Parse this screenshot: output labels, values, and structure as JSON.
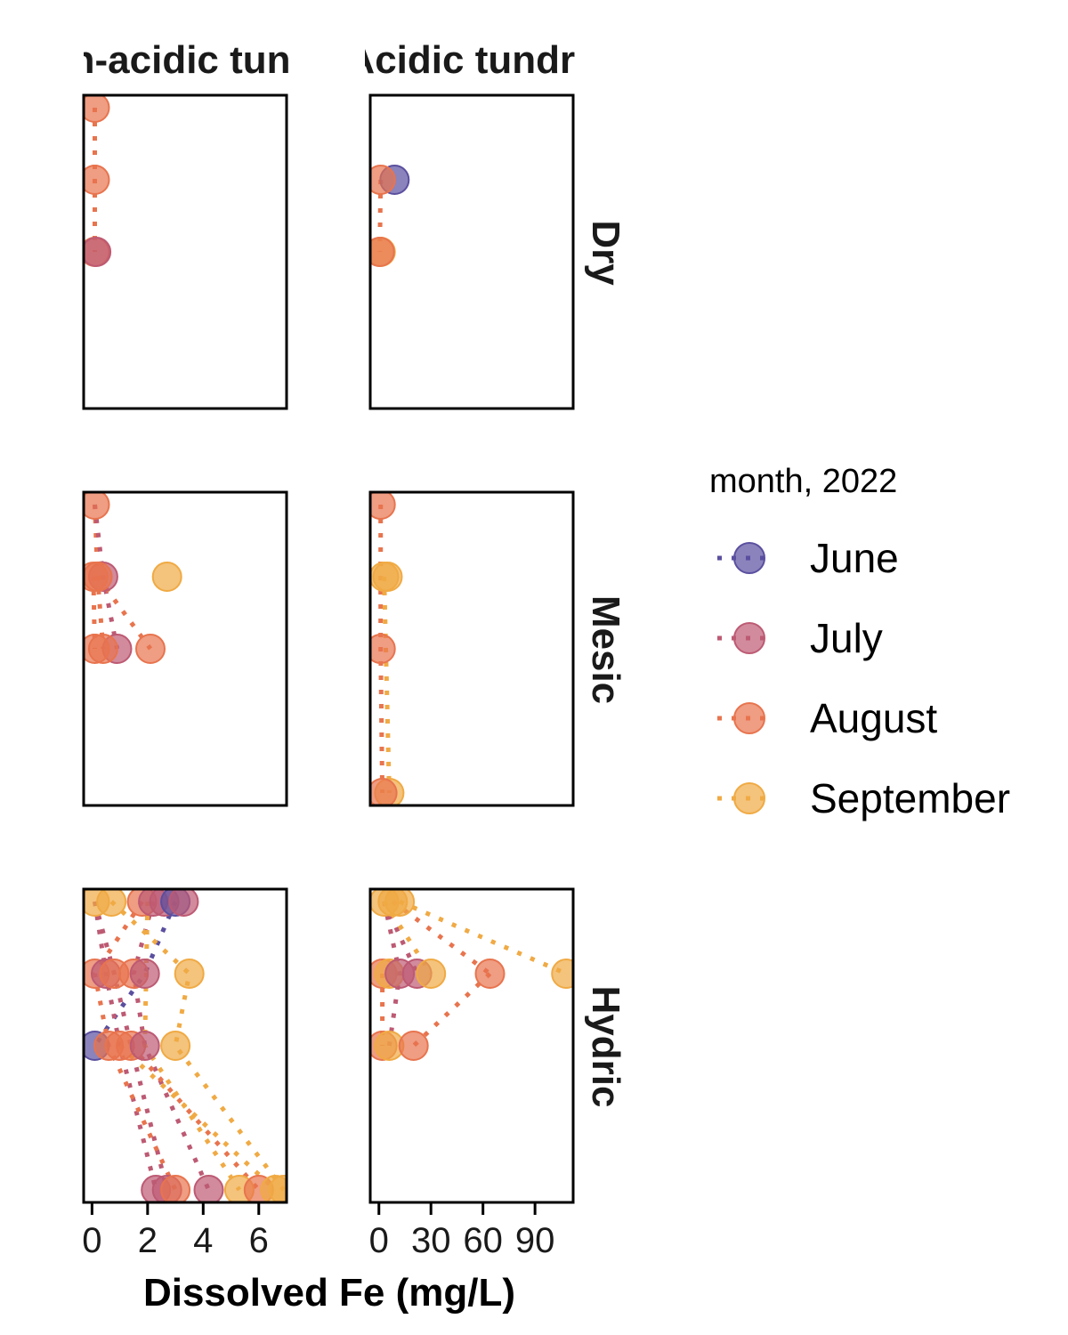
{
  "chart_data": {
    "type": "scatter",
    "xlabel": "Dissolved Fe (mg/L)",
    "columns": [
      "Non-acidic tundra",
      "Acidic tundra"
    ],
    "rows": [
      "Dry",
      "Mesic",
      "Hydric"
    ],
    "legend": {
      "title": "month, 2022",
      "placement": "right"
    },
    "series": [
      {
        "name": "June",
        "color": "#5a4f9f"
      },
      {
        "name": "July",
        "color": "#bd5a73"
      },
      {
        "name": "August",
        "color": "#e8744e"
      },
      {
        "name": "September",
        "color": "#f0aa44"
      }
    ],
    "x_axes": [
      {
        "ticks": [
          0,
          2,
          4,
          6
        ],
        "tick_labels": [
          "0",
          "2",
          "4",
          "6"
        ],
        "range": [
          -0.3,
          7.0
        ]
      },
      {
        "ticks": [
          0,
          30,
          60,
          90
        ],
        "tick_labels": [
          "0",
          "30",
          "60",
          "90"
        ],
        "range": [
          -5,
          112
        ]
      }
    ],
    "depth_levels": [
      1,
      2,
      3,
      4,
      5
    ],
    "panels": [
      {
        "col": 0,
        "row": 0,
        "points": [
          {
            "s": 2,
            "d": 1,
            "x": 0.1
          },
          {
            "s": 2,
            "d": 2,
            "x": 0.1
          },
          {
            "s": 2,
            "d": 3,
            "x": 0.1
          },
          {
            "s": 1,
            "d": 3,
            "x": 0.15
          }
        ],
        "lines": [
          {
            "s": 2,
            "pts": [
              [
                0.1,
                1
              ],
              [
                0.1,
                2
              ],
              [
                0.1,
                3
              ]
            ]
          }
        ]
      },
      {
        "col": 1,
        "row": 0,
        "points": [
          {
            "s": 0,
            "d": 2,
            "x": 9
          },
          {
            "s": 2,
            "d": 2,
            "x": 1
          },
          {
            "s": 3,
            "d": 3,
            "x": 1
          },
          {
            "s": 2,
            "d": 3,
            "x": 0.5
          }
        ],
        "lines": [
          {
            "s": 2,
            "pts": [
              [
                1,
                2
              ],
              [
                0.5,
                3
              ]
            ]
          }
        ]
      },
      {
        "col": 0,
        "row": 1,
        "points": [
          {
            "s": 2,
            "d": 1,
            "x": 0.1
          },
          {
            "s": 1,
            "d": 2,
            "x": 0.4
          },
          {
            "s": 2,
            "d": 2,
            "x": 0.2
          },
          {
            "s": 2,
            "d": 2,
            "x": 0.05
          },
          {
            "s": 3,
            "d": 2,
            "x": 2.7
          },
          {
            "s": 1,
            "d": 3,
            "x": 0.9
          },
          {
            "s": 2,
            "d": 3,
            "x": 0.4
          },
          {
            "s": 2,
            "d": 3,
            "x": 0.1
          },
          {
            "s": 2,
            "d": 3,
            "x": 2.1
          }
        ],
        "lines": [
          {
            "s": 2,
            "pts": [
              [
                0.1,
                1
              ],
              [
                0.2,
                2
              ],
              [
                0.4,
                3
              ]
            ]
          },
          {
            "s": 1,
            "pts": [
              [
                0.1,
                1
              ],
              [
                0.4,
                2
              ],
              [
                0.9,
                3
              ]
            ]
          },
          {
            "s": 2,
            "pts": [
              [
                0.05,
                2
              ],
              [
                0.1,
                3
              ]
            ]
          },
          {
            "s": 2,
            "pts": [
              [
                0.2,
                2
              ],
              [
                2.1,
                3
              ]
            ]
          }
        ]
      },
      {
        "col": 1,
        "row": 1,
        "points": [
          {
            "s": 2,
            "d": 1,
            "x": 1
          },
          {
            "s": 3,
            "d": 2,
            "x": 3
          },
          {
            "s": 3,
            "d": 2,
            "x": 5
          },
          {
            "s": 2,
            "d": 3,
            "x": 1
          },
          {
            "s": 3,
            "d": 5,
            "x": 6
          },
          {
            "s": 2,
            "d": 5,
            "x": 2
          }
        ],
        "lines": [
          {
            "s": 2,
            "pts": [
              [
                1,
                1
              ],
              [
                1,
                2
              ],
              [
                1,
                3
              ],
              [
                2,
                5
              ]
            ]
          },
          {
            "s": 3,
            "pts": [
              [
                3,
                2
              ],
              [
                6,
                5
              ]
            ]
          }
        ]
      },
      {
        "col": 0,
        "row": 2,
        "points": [
          {
            "s": 3,
            "d": 1,
            "x": 0.1
          },
          {
            "s": 3,
            "d": 1,
            "x": 0.7
          },
          {
            "s": 2,
            "d": 1,
            "x": 1.8
          },
          {
            "s": 1,
            "d": 1,
            "x": 2.2
          },
          {
            "s": 1,
            "d": 1,
            "x": 2.6
          },
          {
            "s": 0,
            "d": 1,
            "x": 3.0
          },
          {
            "s": 1,
            "d": 1,
            "x": 3.3
          },
          {
            "s": 2,
            "d": 2,
            "x": 0.1
          },
          {
            "s": 1,
            "d": 2,
            "x": 0.5
          },
          {
            "s": 2,
            "d": 2,
            "x": 0.8
          },
          {
            "s": 2,
            "d": 2,
            "x": 1.5
          },
          {
            "s": 1,
            "d": 2,
            "x": 1.9
          },
          {
            "s": 3,
            "d": 2,
            "x": 3.5
          },
          {
            "s": 0,
            "d": 3,
            "x": 0.1
          },
          {
            "s": 2,
            "d": 3,
            "x": 0.6
          },
          {
            "s": 2,
            "d": 3,
            "x": 1.0
          },
          {
            "s": 2,
            "d": 3,
            "x": 1.4
          },
          {
            "s": 1,
            "d": 3,
            "x": 1.9
          },
          {
            "s": 3,
            "d": 3,
            "x": 3.0
          },
          {
            "s": 1,
            "d": 5,
            "x": 2.3
          },
          {
            "s": 1,
            "d": 5,
            "x": 2.7
          },
          {
            "s": 2,
            "d": 5,
            "x": 3.0
          },
          {
            "s": 1,
            "d": 5,
            "x": 4.2
          },
          {
            "s": 3,
            "d": 5,
            "x": 5.3
          },
          {
            "s": 2,
            "d": 5,
            "x": 6.0
          },
          {
            "s": 3,
            "d": 5,
            "x": 6.6
          },
          {
            "s": 3,
            "d": 5,
            "x": 6.9
          }
        ],
        "lines": [
          {
            "s": 0,
            "pts": [
              [
                3.0,
                1
              ],
              [
                1.9,
                2
              ],
              [
                0.1,
                3
              ]
            ]
          },
          {
            "s": 1,
            "pts": [
              [
                0.1,
                1
              ],
              [
                0.5,
                2
              ],
              [
                1.0,
                3
              ],
              [
                2.3,
                5
              ]
            ]
          },
          {
            "s": 1,
            "pts": [
              [
                2.2,
                1
              ],
              [
                1.5,
                2
              ],
              [
                1.9,
                3
              ],
              [
                4.2,
                5
              ]
            ]
          },
          {
            "s": 1,
            "pts": [
              [
                0.1,
                1
              ],
              [
                0.8,
                2
              ],
              [
                1.4,
                3
              ],
              [
                2.7,
                5
              ]
            ]
          },
          {
            "s": 2,
            "pts": [
              [
                1.8,
                1
              ],
              [
                0.1,
                2
              ],
              [
                0.6,
                3
              ],
              [
                3.0,
                5
              ]
            ]
          },
          {
            "s": 3,
            "pts": [
              [
                0.7,
                1
              ],
              [
                3.5,
                2
              ],
              [
                3.0,
                3
              ],
              [
                6.9,
                5
              ]
            ]
          },
          {
            "s": 3,
            "pts": [
              [
                2.0,
                1
              ],
              [
                1.9,
                3
              ],
              [
                5.3,
                5
              ]
            ]
          },
          {
            "s": 2,
            "pts": [
              [
                1.4,
                3
              ],
              [
                6.0,
                5
              ]
            ]
          },
          {
            "s": 3,
            "pts": [
              [
                1.0,
                3
              ],
              [
                6.6,
                5
              ]
            ]
          }
        ]
      },
      {
        "col": 1,
        "row": 2,
        "points": [
          {
            "s": 3,
            "d": 1,
            "x": 3
          },
          {
            "s": 3,
            "d": 1,
            "x": 8
          },
          {
            "s": 3,
            "d": 1,
            "x": 12
          },
          {
            "s": 2,
            "d": 2,
            "x": 2
          },
          {
            "s": 3,
            "d": 2,
            "x": 6
          },
          {
            "s": 1,
            "d": 2,
            "x": 12
          },
          {
            "s": 1,
            "d": 2,
            "x": 22
          },
          {
            "s": 3,
            "d": 2,
            "x": 30
          },
          {
            "s": 2,
            "d": 2,
            "x": 64
          },
          {
            "s": 3,
            "d": 2,
            "x": 108
          },
          {
            "s": 2,
            "d": 3,
            "x": 2
          },
          {
            "s": 3,
            "d": 3,
            "x": 6
          },
          {
            "s": 2,
            "d": 3,
            "x": 20
          }
        ],
        "lines": [
          {
            "s": 3,
            "pts": [
              [
                12,
                1
              ],
              [
                108,
                2
              ]
            ]
          },
          {
            "s": 2,
            "pts": [
              [
                8,
                1
              ],
              [
                64,
                2
              ]
            ]
          },
          {
            "s": 2,
            "pts": [
              [
                64,
                2
              ],
              [
                20,
                3
              ]
            ]
          },
          {
            "s": 1,
            "pts": [
              [
                3,
                1
              ],
              [
                22,
                2
              ]
            ]
          },
          {
            "s": 1,
            "pts": [
              [
                3,
                1
              ],
              [
                12,
                2
              ],
              [
                6,
                3
              ]
            ]
          },
          {
            "s": 3,
            "pts": [
              [
                3,
                1
              ],
              [
                30,
                2
              ]
            ]
          },
          {
            "s": 2,
            "pts": [
              [
                2,
                2
              ],
              [
                2,
                3
              ]
            ]
          }
        ]
      }
    ]
  }
}
